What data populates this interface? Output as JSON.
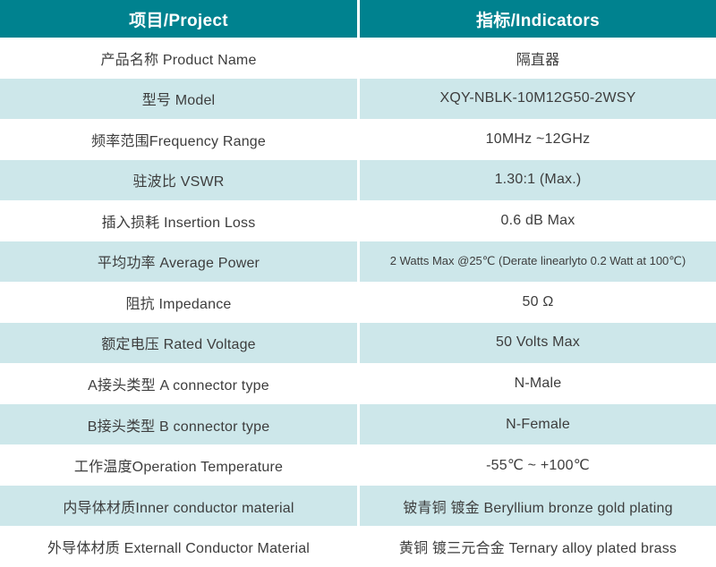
{
  "colors": {
    "header_bg": "#00828F",
    "header_text": "#FFFFFF",
    "row_bg": "#FFFFFF",
    "row_alt_bg": "#CDE7EA",
    "body_text": "#3D3D3D",
    "divider": "#FFFFFF"
  },
  "table": {
    "headers": {
      "project": "项目/Project",
      "indicators": "指标/Indicators"
    },
    "rows": [
      {
        "project": "产品名称 Product Name",
        "indicator": "隔直器"
      },
      {
        "project": "型号 Model",
        "indicator": "XQY-NBLK-10M12G50-2WSY"
      },
      {
        "project": "频率范围Frequency Range",
        "indicator": "10MHz ~12GHz"
      },
      {
        "project": "驻波比 VSWR",
        "indicator": "1.30:1 (Max.)"
      },
      {
        "project": "插入损耗 Insertion Loss",
        "indicator": "0.6 dB Max"
      },
      {
        "project": "平均功率 Average Power",
        "indicator": "2 Watts Max @25℃ (Derate linearlyto 0.2 Watt at 100℃)"
      },
      {
        "project": "阻抗 Impedance",
        "indicator": "50 Ω"
      },
      {
        "project": "额定电压 Rated Voltage",
        "indicator": "50 Volts Max"
      },
      {
        "project": "A接头类型 A connector type",
        "indicator": "N-Male"
      },
      {
        "project": "B接头类型 B connector type",
        "indicator": "N-Female"
      },
      {
        "project": "工作温度Operation Temperature",
        "indicator": "-55℃ ~ +100℃"
      },
      {
        "project": "内导体材质Inner conductor material",
        "indicator": "铍青铜 镀金 Beryllium bronze gold plating"
      },
      {
        "project": "外导体材质 Externall Conductor Material",
        "indicator": "黄铜 镀三元合金 Ternary alloy plated brass"
      }
    ]
  }
}
